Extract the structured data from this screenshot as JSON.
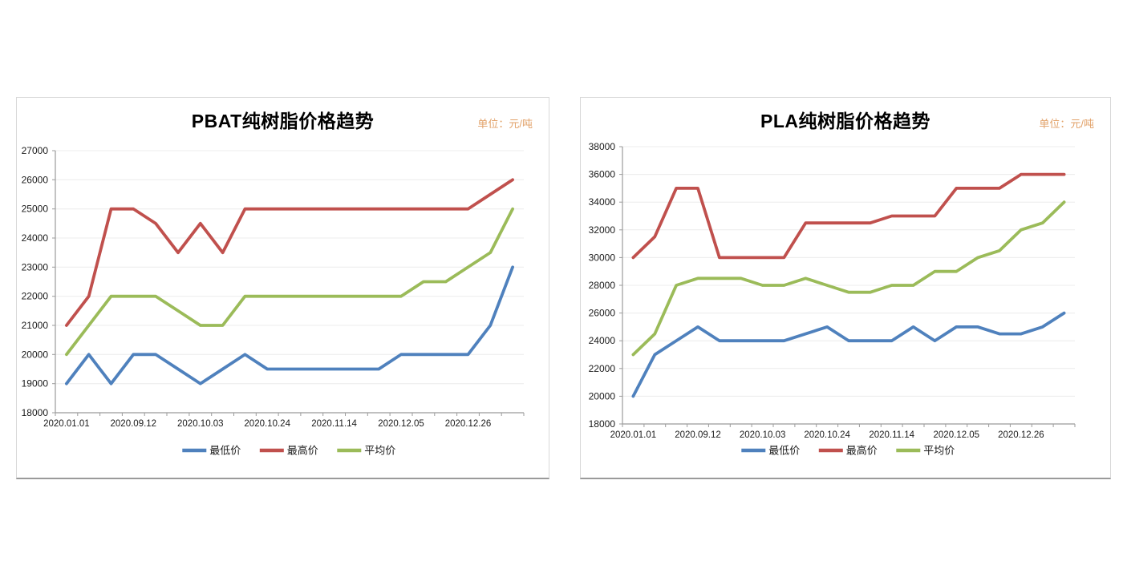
{
  "chart_data": [
    {
      "type": "line",
      "title": "PBAT纯树脂价格趋势",
      "unit_note": "单位：元/吨",
      "unit_color": "#e2a269",
      "n_points": 21,
      "x_labels": [
        "2020.01.01",
        "2020.09.12",
        "2020.10.03",
        "2020.10.24",
        "2020.11.14",
        "2020.12.05",
        "2020.12.26"
      ],
      "x_label_indices": [
        0,
        3,
        6,
        9,
        12,
        15,
        18
      ],
      "ylim": [
        18000,
        27000
      ],
      "y_step": 1000,
      "y_ticks": [
        18000,
        19000,
        20000,
        21000,
        22000,
        23000,
        24000,
        25000,
        26000,
        27000
      ],
      "grid": true,
      "legend_position": "bottom",
      "series": [
        {
          "name": "最低价",
          "color": "#4F81BD",
          "values": [
            19000,
            20000,
            19000,
            20000,
            20000,
            19500,
            19000,
            19500,
            20000,
            19500,
            19500,
            19500,
            19500,
            19500,
            19500,
            20000,
            20000,
            20000,
            20000,
            21000,
            23000
          ]
        },
        {
          "name": "最高价",
          "color": "#C0504D",
          "values": [
            21000,
            22000,
            25000,
            25000,
            24500,
            23500,
            24500,
            23500,
            25000,
            25000,
            25000,
            25000,
            25000,
            25000,
            25000,
            25000,
            25000,
            25000,
            25000,
            25500,
            26000
          ]
        },
        {
          "name": "平均价",
          "color": "#9BBB59",
          "values": [
            20000,
            21000,
            22000,
            22000,
            22000,
            21500,
            21000,
            21000,
            22000,
            22000,
            22000,
            22000,
            22000,
            22000,
            22000,
            22000,
            22500,
            22500,
            23000,
            23500,
            25000
          ]
        }
      ]
    },
    {
      "type": "line",
      "title": "PLA纯树脂价格趋势",
      "unit_note": "单位：元/吨",
      "unit_color": "#e2a269",
      "n_points": 21,
      "x_labels": [
        "2020.01.01",
        "2020.09.12",
        "2020.10.03",
        "2020.10.24",
        "2020.11.14",
        "2020.12.05",
        "2020.12.26"
      ],
      "x_label_indices": [
        0,
        3,
        6,
        9,
        12,
        15,
        18
      ],
      "ylim": [
        18000,
        38000
      ],
      "y_step": 2000,
      "y_ticks": [
        18000,
        20000,
        22000,
        24000,
        26000,
        28000,
        30000,
        32000,
        34000,
        36000,
        38000
      ],
      "grid": true,
      "legend_position": "bottom",
      "series": [
        {
          "name": "最低价",
          "color": "#4F81BD",
          "values": [
            20000,
            23000,
            24000,
            25000,
            24000,
            24000,
            24000,
            24000,
            24500,
            25000,
            24000,
            24000,
            24000,
            25000,
            24000,
            25000,
            25000,
            24500,
            24500,
            25000,
            26000
          ]
        },
        {
          "name": "最高价",
          "color": "#C0504D",
          "values": [
            30000,
            31500,
            35000,
            35000,
            30000,
            30000,
            30000,
            30000,
            32500,
            32500,
            32500,
            32500,
            33000,
            33000,
            33000,
            35000,
            35000,
            35000,
            36000,
            36000,
            36000
          ]
        },
        {
          "name": "平均价",
          "color": "#9BBB59",
          "values": [
            23000,
            24500,
            28000,
            28500,
            28500,
            28500,
            28000,
            28000,
            28500,
            28000,
            27500,
            27500,
            28000,
            28000,
            29000,
            29000,
            30000,
            30500,
            32000,
            32500,
            34000
          ]
        }
      ]
    }
  ]
}
